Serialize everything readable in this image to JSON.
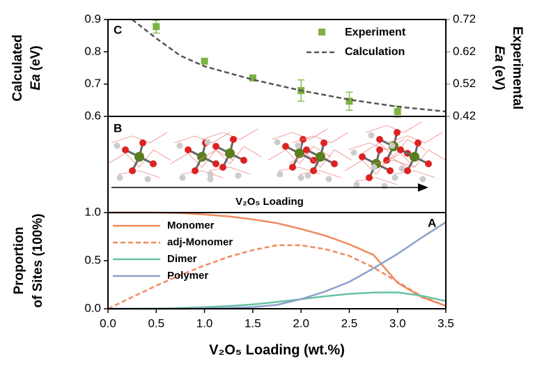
{
  "chart_data": [
    {
      "type": "scatter",
      "panel_label": "C",
      "ylabel": [
        "Calculated",
        "Ea",
        "(eV)"
      ],
      "y2label": [
        "Experimental",
        "Ea",
        "(eV)"
      ],
      "xlim": [
        0,
        3.5
      ],
      "ylim": [
        0.6,
        0.9
      ],
      "yticks": [
        0.6,
        0.7,
        0.8,
        0.9
      ],
      "y2lim": [
        0.42,
        0.72
      ],
      "y2ticks": [
        0.42,
        0.52,
        0.62,
        0.72
      ],
      "y2color": "#7cb342",
      "series": [
        {
          "name": "Experiment",
          "type": "scatter",
          "axis": "y2",
          "color": "#7cb342",
          "x": [
            0.5,
            1.0,
            1.5,
            2.0,
            2.5,
            3.0
          ],
          "values": [
            0.698,
            0.591,
            0.539,
            0.5,
            0.467,
            0.435
          ],
          "errors": [
            0.02,
            0.004,
            0.004,
            0.033,
            0.028,
            0.017
          ]
        },
        {
          "name": "Calculation",
          "type": "line",
          "color": "#555555",
          "dash": true,
          "x": [
            0.25,
            0.5,
            0.75,
            1.0,
            1.5,
            2.0,
            2.5,
            3.0,
            3.5
          ],
          "values": [
            0.9,
            0.842,
            0.788,
            0.755,
            0.714,
            0.68,
            0.652,
            0.63,
            0.615
          ]
        }
      ]
    },
    {
      "type": "image",
      "panel_label": "B",
      "caption": "V₂O₅ Loading"
    },
    {
      "type": "line",
      "panel_label": "A",
      "ylabel": [
        "Proportion",
        "of Sites (100%)"
      ],
      "xlabel": "V₂O₅ Loading (wt.%)",
      "xlim": [
        0,
        3.5
      ],
      "xticks": [
        {
          "value": 0,
          "label": "0.0"
        },
        0.5,
        {
          "value": 1,
          "label": "1.0"
        },
        1.5,
        {
          "value": 2,
          "label": "2.0"
        },
        2.5,
        {
          "value": 3,
          "label": "3.0"
        },
        3.5
      ],
      "ylim": [
        0,
        1
      ],
      "yticks": [
        {
          "value": 0,
          "label": "0.0"
        },
        0.5,
        {
          "value": 1,
          "label": "1.0"
        }
      ],
      "x": [
        0,
        0.25,
        0.5,
        0.75,
        1.0,
        1.25,
        1.5,
        1.75,
        2.0,
        2.25,
        2.5,
        2.75,
        3.0,
        3.25,
        3.5
      ],
      "series": [
        {
          "name": "Monomer",
          "color": "#f08a5d",
          "values": [
            1,
            1,
            1,
            0.995,
            0.98,
            0.96,
            0.93,
            0.89,
            0.83,
            0.76,
            0.67,
            0.56,
            0.27,
            0.12,
            0.03
          ]
        },
        {
          "name": "adj-Monomer",
          "color": "#f08a5d",
          "dash": true,
          "values": [
            0,
            0.12,
            0.24,
            0.35,
            0.45,
            0.54,
            0.61,
            0.66,
            0.66,
            0.62,
            0.55,
            0.43,
            0.28,
            0.13,
            0.03
          ]
        },
        {
          "name": "Dimer",
          "color": "#66c2a5",
          "values": [
            0,
            0.001,
            0.003,
            0.008,
            0.016,
            0.028,
            0.045,
            0.07,
            0.1,
            0.13,
            0.155,
            0.168,
            0.17,
            0.135,
            0.08
          ]
        },
        {
          "name": "Polymer",
          "color": "#8da0cb",
          "values": [
            0,
            0,
            0,
            0.001,
            0.003,
            0.008,
            0.018,
            0.04,
            0.1,
            0.18,
            0.28,
            0.42,
            0.57,
            0.74,
            0.9
          ]
        }
      ]
    }
  ]
}
